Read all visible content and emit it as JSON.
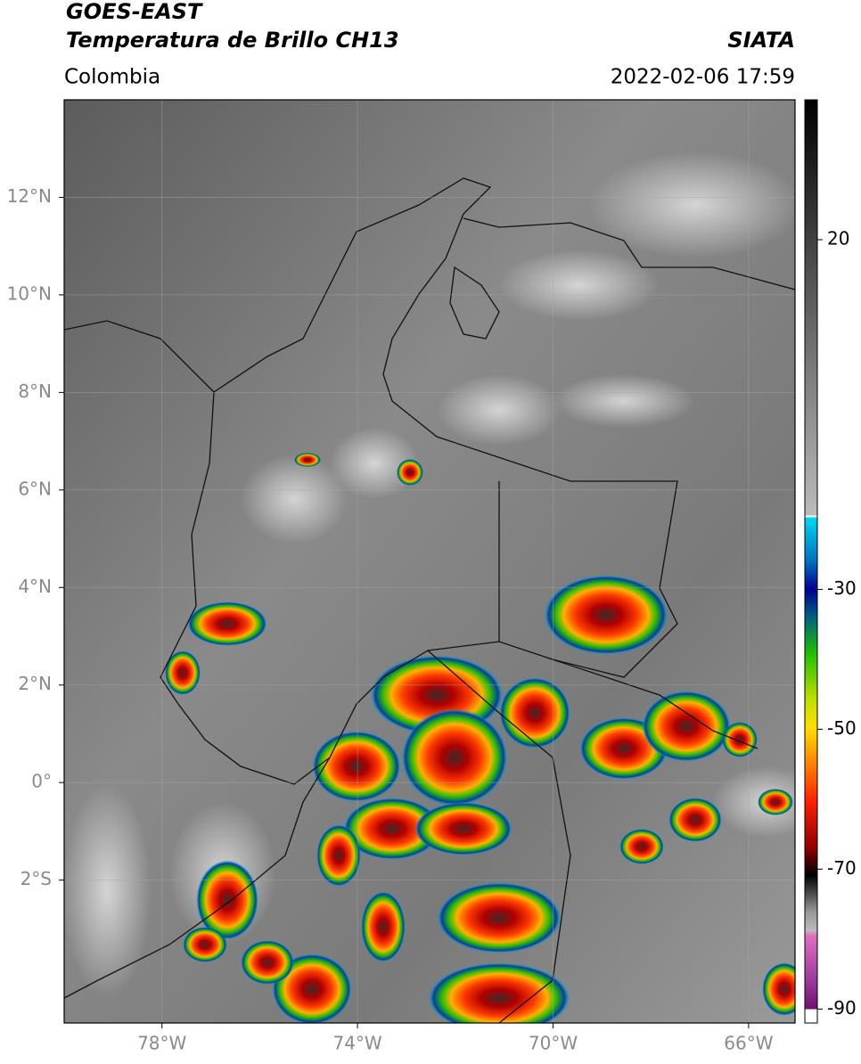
{
  "header": {
    "title": "GOES-EAST",
    "subtitle": "Temperatura de Brillo CH13",
    "source": "SIATA",
    "region": "Colombia",
    "datetime": "2022-02-06 17:59"
  },
  "map": {
    "lonlim": [
      -80,
      -65.05
    ],
    "latlim": [
      -4.93,
      14
    ],
    "lat_ticks": [
      {
        "value": 12,
        "label": "12°N"
      },
      {
        "value": 10,
        "label": "10°N"
      },
      {
        "value": 8,
        "label": "8°N"
      },
      {
        "value": 6,
        "label": "6°N"
      },
      {
        "value": 4,
        "label": "4°N"
      },
      {
        "value": 2,
        "label": "2°N"
      },
      {
        "value": 0,
        "label": "0°"
      },
      {
        "value": -2,
        "label": "2°S"
      }
    ],
    "lon_ticks": [
      {
        "value": -78,
        "label": "78°W"
      },
      {
        "value": -74,
        "label": "74°W"
      },
      {
        "value": -70,
        "label": "70°W"
      },
      {
        "value": -66,
        "label": "66°W"
      }
    ]
  },
  "colorbar": {
    "vlim": [
      -92,
      40
    ],
    "ticks": [
      20,
      -30,
      -50,
      -70,
      -90
    ]
  }
}
